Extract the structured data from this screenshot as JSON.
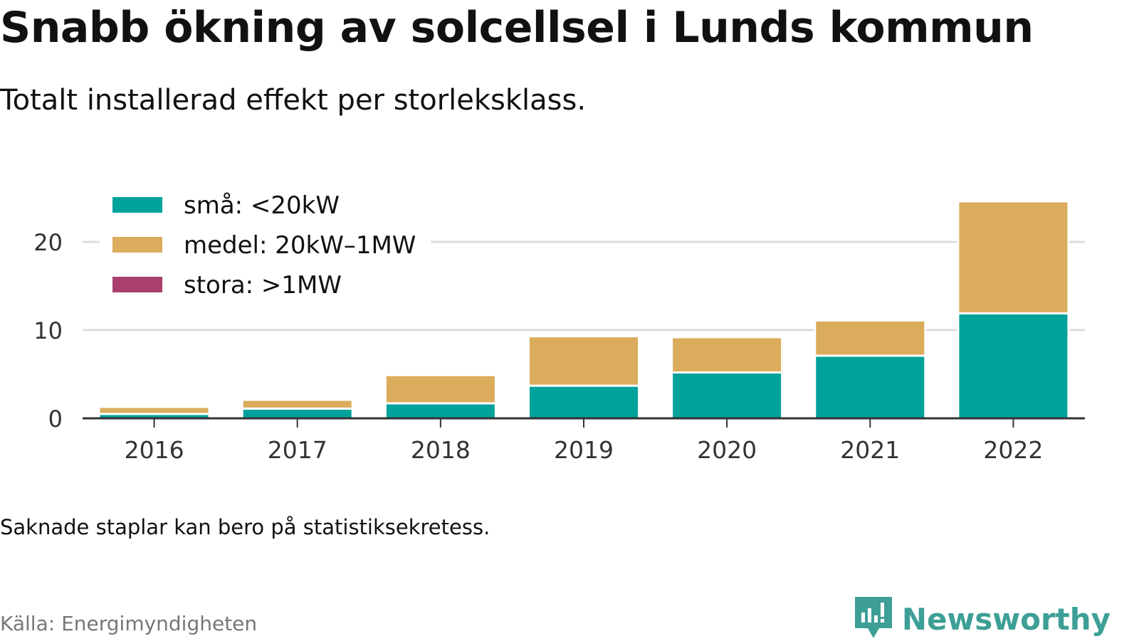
{
  "title": "Snabb ökning av solcellsel i Lunds kommun",
  "subtitle": "Totalt installerad effekt per storleksklass.",
  "note": "Saknade staplar kan bero på statistiksekretess.",
  "source": "Källa: Energimyndigheten",
  "brand": {
    "name": "Newsworthy",
    "icon": "newsworthy-logo-icon",
    "color": "#3d9f96"
  },
  "chart_data": {
    "type": "bar",
    "stacked": true,
    "categories": [
      "2016",
      "2017",
      "2018",
      "2019",
      "2020",
      "2021",
      "2022"
    ],
    "series": [
      {
        "name": "små: <20kW",
        "color": "#00a29b",
        "values": [
          0.5,
          1.1,
          1.7,
          3.7,
          5.2,
          7.1,
          11.9
        ]
      },
      {
        "name": "medel: 20kW–1MW",
        "color": "#dbac5b",
        "values": [
          0.8,
          1.0,
          3.2,
          5.6,
          4.0,
          4.0,
          12.7
        ]
      },
      {
        "name": "stora: >1MW",
        "color": "#a8406b",
        "values": [
          0,
          0,
          0,
          0,
          0,
          0,
          0
        ]
      }
    ],
    "yticks": [
      0,
      10,
      20
    ],
    "ylim": [
      0,
      25
    ],
    "grid": true,
    "legend": "top-left"
  }
}
